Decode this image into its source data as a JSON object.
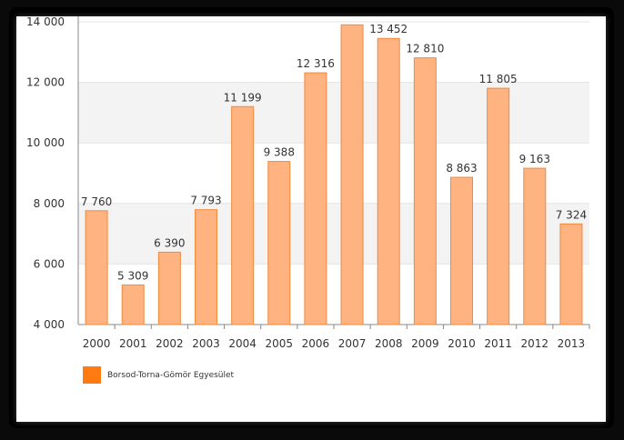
{
  "chart_data": {
    "type": "bar",
    "categories": [
      "2000",
      "2001",
      "2002",
      "2003",
      "2004",
      "2005",
      "2006",
      "2007",
      "2008",
      "2009",
      "2010",
      "2011",
      "2012",
      "2013"
    ],
    "series": [
      {
        "name": "Borsod-Torna-Gömör Egyesület",
        "values": [
          7760,
          5309,
          6390,
          7793,
          11199,
          9388,
          12316,
          13900,
          13452,
          12810,
          8863,
          11805,
          9163,
          7324
        ],
        "data_labels": [
          "7 760",
          "5 309",
          "6 390",
          "7 793",
          "11 199",
          "9 388",
          "12 316",
          "",
          "13 452",
          "12 810",
          "8 863",
          "11 805",
          "9 163",
          "7 324"
        ]
      }
    ],
    "y_ticks": [
      4000,
      6000,
      8000,
      10000,
      12000,
      14000
    ],
    "y_tick_labels": [
      "4 000",
      "6 000",
      "8 000",
      "10 000",
      "12 000",
      "14 000"
    ],
    "ylim": [
      4000,
      14000
    ],
    "grid": "horizontal",
    "legend_position": "bottom-left",
    "colors": {
      "bar_fill": "#ffb380",
      "bar_stroke": "#f08a3c",
      "legend_swatch": "#ff7a10",
      "band": "#f3f3f3"
    }
  },
  "legend": {
    "label": "Borsod-Torna-Gömör Egyesület"
  }
}
